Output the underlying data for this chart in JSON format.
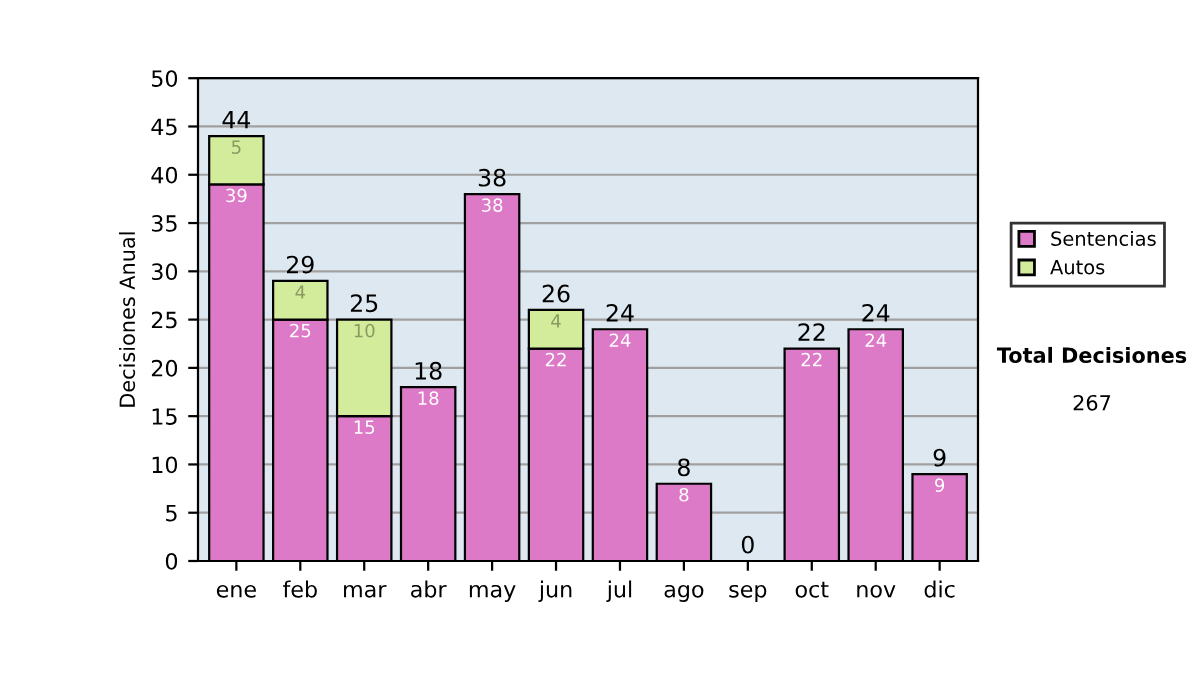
{
  "chart_data": {
    "type": "bar",
    "stacked": true,
    "ylabel": "Decisiones Anual",
    "categories": [
      "ene",
      "feb",
      "mar",
      "abr",
      "may",
      "jun",
      "jul",
      "ago",
      "sep",
      "oct",
      "nov",
      "dic"
    ],
    "series": [
      {
        "name": "Sentencias",
        "color": "#dd7ac8",
        "values": [
          39,
          25,
          15,
          18,
          38,
          22,
          24,
          8,
          0,
          22,
          24,
          9
        ],
        "value_labels": [
          "39",
          "25",
          "15",
          "18",
          "38",
          "22",
          "24",
          "8",
          null,
          "22",
          "24",
          "9"
        ]
      },
      {
        "name": "Autos",
        "color": "#d3ec9c",
        "values": [
          5,
          4,
          10,
          0,
          0,
          4,
          0,
          0,
          0,
          0,
          0,
          0
        ],
        "value_labels": [
          "5",
          "4",
          "10",
          null,
          null,
          "4",
          null,
          null,
          null,
          null,
          null,
          null
        ]
      }
    ],
    "totals": [
      "44",
      "29",
      "25",
      "18",
      "38",
      "26",
      "24",
      "8",
      "0",
      "22",
      "24",
      "9"
    ],
    "ylim": [
      0,
      50
    ],
    "yticks": [
      0,
      5,
      10,
      15,
      20,
      25,
      30,
      35,
      40,
      45,
      50
    ],
    "grid": "y",
    "legend": "right",
    "annotations": [
      "Total Decisiones",
      "267"
    ]
  }
}
